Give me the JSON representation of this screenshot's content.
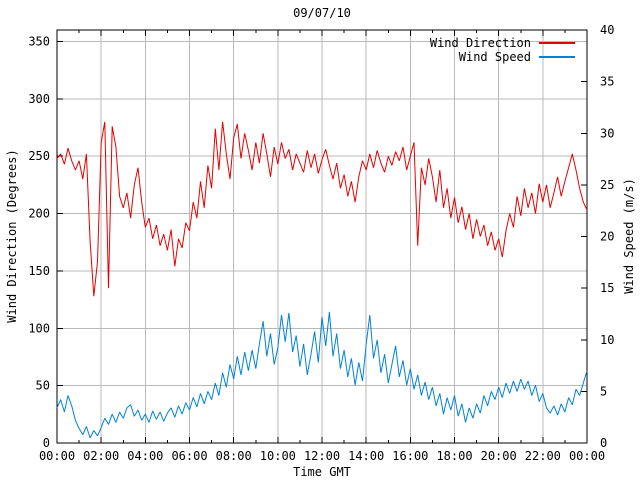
{
  "colors": {
    "background": "#ffffff",
    "axis": "#000000",
    "grid": "#b9b9b9",
    "wind_direction": "#e60000",
    "wind_speed": "#0082dc"
  },
  "chart_data": {
    "type": "line",
    "title": "09/07/10",
    "xlabel": "Time GMT",
    "ylabel_left": "Wind Direction (Degrees)",
    "ylabel_right": "Wind Speed (m/s)",
    "grid": true,
    "legend_position": "top-right-inside",
    "xlim_minutes": [
      0,
      1440
    ],
    "ylim_left": [
      0,
      360
    ],
    "ylim_right": [
      0,
      40
    ],
    "x_tick_minutes": [
      0,
      120,
      240,
      360,
      480,
      600,
      720,
      840,
      960,
      1080,
      1200,
      1320,
      1440
    ],
    "x_tick_labels": [
      "00:00",
      "02:00",
      "04:00",
      "06:00",
      "08:00",
      "10:00",
      "12:00",
      "14:00",
      "16:00",
      "18:00",
      "20:00",
      "22:00",
      "00:00"
    ],
    "x_minor_tick_step_minutes": 60,
    "y_left_ticks": [
      0,
      50,
      100,
      150,
      200,
      250,
      300,
      350
    ],
    "y_right_ticks": [
      0,
      5,
      10,
      15,
      20,
      25,
      30,
      35,
      40
    ],
    "x_start_minute": 0,
    "x_step_minutes": 10,
    "series": [
      {
        "name": "Wind Direction",
        "axis": "left",
        "unit": "degrees",
        "color": "#e60000",
        "values": [
          248,
          252,
          243,
          257,
          246,
          238,
          246,
          230,
          252,
          176,
          128,
          158,
          262,
          280,
          135,
          276,
          258,
          215,
          205,
          218,
          196,
          225,
          240,
          210,
          188,
          196,
          178,
          190,
          172,
          182,
          168,
          186,
          154,
          178,
          170,
          192,
          185,
          210,
          196,
          228,
          205,
          242,
          222,
          274,
          238,
          280,
          252,
          230,
          266,
          278,
          248,
          270,
          255,
          238,
          262,
          244,
          270,
          252,
          232,
          258,
          243,
          262,
          248,
          256,
          238,
          252,
          244,
          236,
          255,
          240,
          252,
          235,
          247,
          256,
          242,
          230,
          244,
          222,
          234,
          215,
          228,
          210,
          232,
          246,
          238,
          252,
          240,
          255,
          244,
          236,
          250,
          242,
          254,
          246,
          258,
          238,
          250,
          262,
          172,
          240,
          225,
          248,
          232,
          210,
          238,
          205,
          222,
          196,
          214,
          192,
          206,
          186,
          200,
          178,
          195,
          180,
          190,
          172,
          184,
          168,
          178,
          162,
          185,
          200,
          188,
          215,
          198,
          222,
          205,
          218,
          200,
          226,
          210,
          225,
          205,
          218,
          232,
          215,
          228,
          240,
          252,
          238,
          222,
          210,
          203
        ]
      },
      {
        "name": "Wind Speed",
        "axis": "right",
        "unit": "m/s",
        "color": "#0082dc",
        "values": [
          3.4,
          4.2,
          3.0,
          4.6,
          3.6,
          2.2,
          1.4,
          0.8,
          1.6,
          0.5,
          1.2,
          0.7,
          1.5,
          2.4,
          1.8,
          2.8,
          2.0,
          3.0,
          2.4,
          3.4,
          3.7,
          2.6,
          3.2,
          2.2,
          2.8,
          2.0,
          3.1,
          2.3,
          3.0,
          2.1,
          2.9,
          3.4,
          2.5,
          3.6,
          2.8,
          3.9,
          3.2,
          4.4,
          3.5,
          4.8,
          3.8,
          5.0,
          4.2,
          5.8,
          4.6,
          6.8,
          5.4,
          7.6,
          6.2,
          8.4,
          6.6,
          8.8,
          7.0,
          9.0,
          7.2,
          9.6,
          11.8,
          8.4,
          10.6,
          7.6,
          9.2,
          12.4,
          9.8,
          12.6,
          8.8,
          10.4,
          7.4,
          9.6,
          6.6,
          8.6,
          10.8,
          7.8,
          12.2,
          9.4,
          12.7,
          8.4,
          10.6,
          7.2,
          9.0,
          6.4,
          8.2,
          5.6,
          7.8,
          6.0,
          9.6,
          12.4,
          8.2,
          10.0,
          6.8,
          8.6,
          5.8,
          7.6,
          9.4,
          6.4,
          8.0,
          5.6,
          7.2,
          5.2,
          6.6,
          4.6,
          5.9,
          4.2,
          5.4,
          3.6,
          4.8,
          2.8,
          4.4,
          3.2,
          4.6,
          2.6,
          3.8,
          2.0,
          3.4,
          2.4,
          3.8,
          2.9,
          4.6,
          3.6,
          5.0,
          4.2,
          5.4,
          4.4,
          5.8,
          4.8,
          6.0,
          5.0,
          6.2,
          5.2,
          6.0,
          4.6,
          5.6,
          4.0,
          4.8,
          3.4,
          2.9,
          3.6,
          2.7,
          3.8,
          3.0,
          4.4,
          3.7,
          5.2,
          4.6,
          5.8,
          7.0
        ]
      }
    ]
  }
}
